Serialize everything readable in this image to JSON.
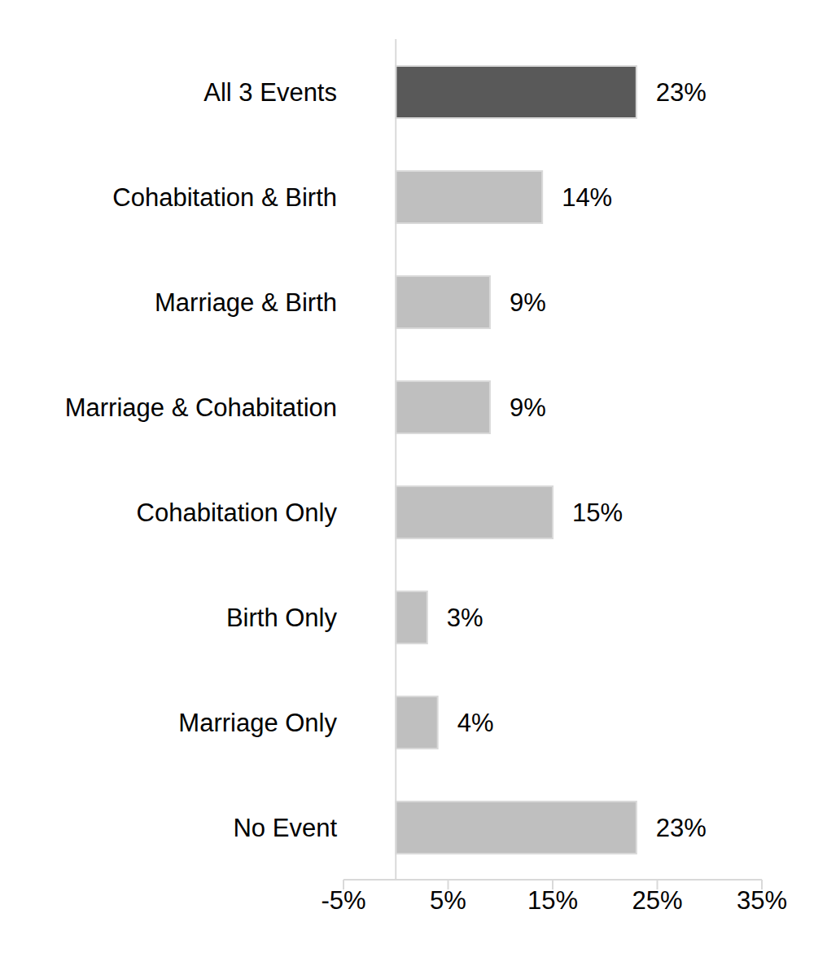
{
  "chart_data": {
    "type": "bar",
    "orientation": "horizontal",
    "categories": [
      "All 3 Events",
      "Cohabitation & Birth",
      "Marriage & Birth",
      "Marriage & Cohabitation",
      "Cohabitation Only",
      "Birth Only",
      "Marriage Only",
      "No Event"
    ],
    "values": [
      23,
      14,
      9,
      9,
      15,
      3,
      4,
      23
    ],
    "value_labels": [
      "23%",
      "14%",
      "9%",
      "9%",
      "15%",
      "3%",
      "4%",
      "23%"
    ],
    "colors": [
      "#595959",
      "#bfbfbf",
      "#bfbfbf",
      "#bfbfbf",
      "#bfbfbf",
      "#bfbfbf",
      "#bfbfbf",
      "#bfbfbf"
    ],
    "xlim": [
      -5,
      35
    ],
    "xticks": [
      {
        "value": -5,
        "label": "-5%"
      },
      {
        "value": 5,
        "label": "5%"
      },
      {
        "value": 15,
        "label": "15%"
      },
      {
        "value": 25,
        "label": "25%"
      },
      {
        "value": 35,
        "label": "35%"
      }
    ],
    "grid": false,
    "data_labels": true
  }
}
